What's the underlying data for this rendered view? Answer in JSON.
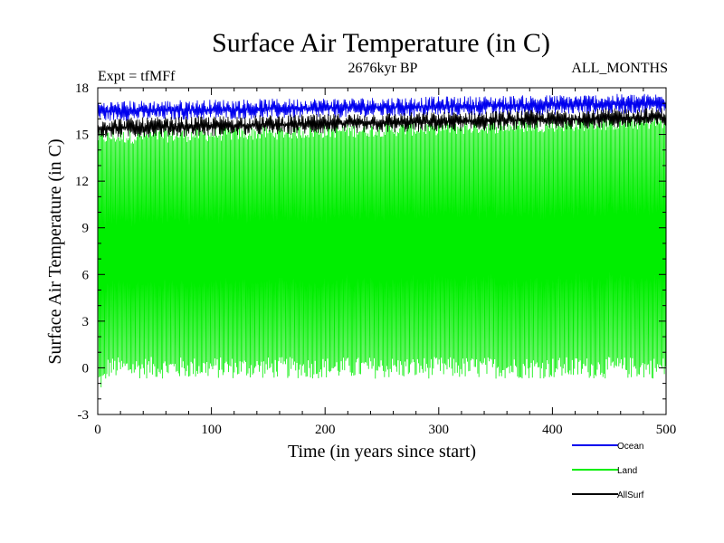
{
  "chart_data": {
    "type": "line",
    "title": "Surface Air Temperature (in C)",
    "subtitle_left": "Expt = tfMFf",
    "subtitle_center": "2676kyr BP",
    "subtitle_right": "ALL_MONTHS",
    "xlabel": "Time (in years since start)",
    "ylabel": "Surface Air Temperature (in C)",
    "xlim": [
      0,
      500
    ],
    "ylim": [
      -3,
      18
    ],
    "xticks": [
      0,
      100,
      200,
      300,
      400,
      500
    ],
    "yticks": [
      -3,
      0,
      3,
      6,
      9,
      12,
      15,
      18
    ],
    "series": [
      {
        "name": "Land",
        "color": "#00ee00",
        "annual_min_approx": 0.0,
        "annual_max_approx": 15.5,
        "trend_start_max": 14.8,
        "trend_end_max": 15.8
      },
      {
        "name": "AllSurf",
        "color": "#000000",
        "annual_min_approx": 15.0,
        "annual_max_approx": 16.4,
        "trend_start": 15.4,
        "trend_end": 16.1
      },
      {
        "name": "Ocean",
        "color": "#0000ee",
        "annual_min_approx": 15.9,
        "annual_max_approx": 17.4,
        "trend_start": 16.5,
        "trend_end": 17.0
      }
    ],
    "legend": [
      {
        "label": "Ocean",
        "color": "#0000ee"
      },
      {
        "label": "Land",
        "color": "#00ee00"
      },
      {
        "label": "AllSurf",
        "color": "#000000"
      }
    ],
    "legend_position": "bottom-right"
  }
}
